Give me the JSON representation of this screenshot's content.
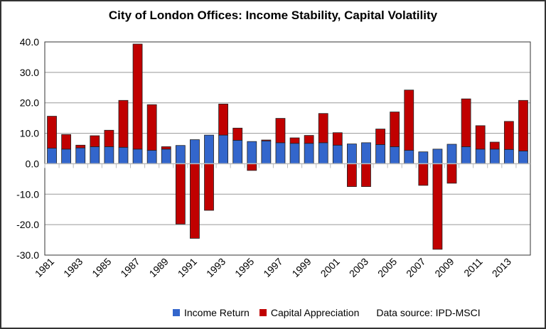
{
  "chart_data": {
    "type": "bar",
    "stacked": true,
    "title": "City of London Offices: Income Stability, Capital Volatility",
    "categories": [
      "1981",
      "1982",
      "1983",
      "1984",
      "1985",
      "1986",
      "1987",
      "1988",
      "1989",
      "1990",
      "1991",
      "1992",
      "1993",
      "1994",
      "1995",
      "1996",
      "1997",
      "1998",
      "1999",
      "2000",
      "2001",
      "2002",
      "2003",
      "2004",
      "2005",
      "2006",
      "2007",
      "2008",
      "2009",
      "2010",
      "2011",
      "2012",
      "2013",
      "2014"
    ],
    "x_tick_labels": [
      "1981",
      "1983",
      "1985",
      "1987",
      "1989",
      "1991",
      "1993",
      "1995",
      "1997",
      "1999",
      "2001",
      "2003",
      "2005",
      "2007",
      "2009",
      "2011",
      "2013"
    ],
    "series": [
      {
        "name": "Income Return",
        "color": "#3366CC",
        "values": [
          5.1,
          4.8,
          5.2,
          5.6,
          5.6,
          5.4,
          4.8,
          4.4,
          4.8,
          6.0,
          7.9,
          9.4,
          9.4,
          7.7,
          7.3,
          7.5,
          6.9,
          6.7,
          6.7,
          6.9,
          6.1,
          6.5,
          6.9,
          6.3,
          5.6,
          4.4,
          3.9,
          4.8,
          6.4,
          5.6,
          4.8,
          4.8,
          4.7,
          4.2
        ]
      },
      {
        "name": "Capital Appreciation",
        "color": "#C00000",
        "values": [
          10.5,
          4.8,
          0.9,
          3.6,
          5.4,
          15.4,
          34.5,
          15.0,
          0.8,
          -19.8,
          -24.5,
          -15.3,
          10.2,
          4.0,
          -2.2,
          0.3,
          8.0,
          1.8,
          2.6,
          9.6,
          4.1,
          -7.5,
          -7.5,
          5.1,
          11.4,
          19.8,
          -7.1,
          -28.1,
          -6.4,
          15.7,
          7.7,
          2.3,
          9.2,
          16.6
        ]
      }
    ],
    "ylim": [
      -30,
      40
    ],
    "y_ticks": [
      "-30.0",
      "-20.0",
      "-10.0",
      "0.0",
      "10.0",
      "20.0",
      "30.0",
      "40.0"
    ],
    "grid": true,
    "legend_position": "bottom",
    "source_note": "Data source: IPD-MSCI"
  }
}
